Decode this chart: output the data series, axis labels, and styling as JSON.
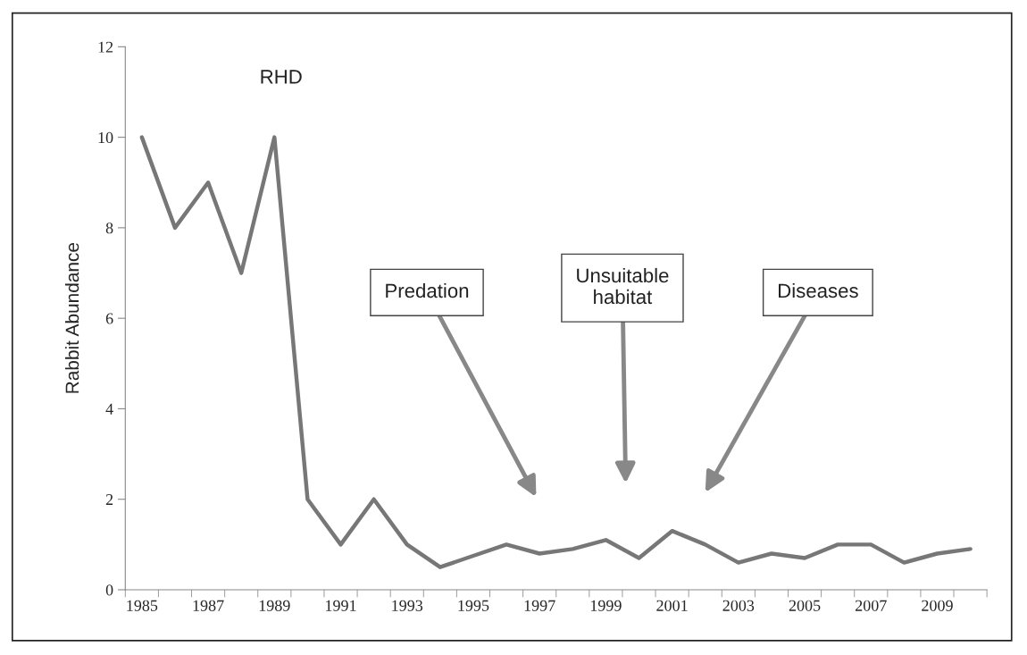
{
  "chart_data": {
    "type": "line",
    "categories": [
      "1985",
      null,
      "1987",
      null,
      "1989",
      null,
      "1991",
      null,
      "1993",
      null,
      "1995",
      null,
      "1997",
      null,
      "1999",
      null,
      "2001",
      null,
      "2003",
      null,
      "2005",
      null,
      "2007",
      null,
      "2009",
      null
    ],
    "ylabel": "Rabbit Abundance",
    "series": [
      {
        "color": "#777777",
        "values": [
          10,
          8,
          9,
          7,
          10,
          2,
          1,
          2,
          1,
          0.5,
          0.75,
          1,
          0.8,
          0.9,
          1.1,
          0.7,
          1.3,
          1.0,
          0.6,
          0.8,
          0.7,
          1.0,
          1.0,
          0.6,
          0.8,
          0.9
        ]
      }
    ],
    "ylim": [
      0,
      12
    ],
    "yticks": [
      0,
      2,
      4,
      6,
      8,
      10,
      12
    ],
    "annotations": [
      "RHD",
      "Predation",
      "Unsuitable\nhabitat",
      "Diseases"
    ],
    "grid": false,
    "legend": false,
    "marker": "none",
    "line_style": "solid"
  }
}
